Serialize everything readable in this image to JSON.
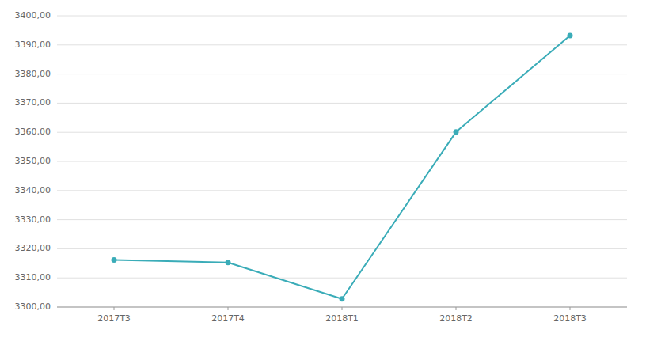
{
  "chart_data": {
    "type": "line",
    "categories": [
      "2017T3",
      "2017T4",
      "2018T1",
      "2018T2",
      "2018T3"
    ],
    "values": [
      3316.2,
      3315.3,
      3302.8,
      3360.1,
      3393.2
    ],
    "color": "#3aacb8",
    "marker": "circle",
    "ylim": [
      3300.0,
      3400.0
    ],
    "yticks": [
      {
        "value": 3300,
        "label": "3300,00"
      },
      {
        "value": 3310,
        "label": "3310,00"
      },
      {
        "value": 3320,
        "label": "3320,00"
      },
      {
        "value": 3330,
        "label": "3330,00"
      },
      {
        "value": 3340,
        "label": "3340,00"
      },
      {
        "value": 3350,
        "label": "3350,00"
      },
      {
        "value": 3360,
        "label": "3360,00"
      },
      {
        "value": 3370,
        "label": "3370,00"
      },
      {
        "value": 3380,
        "label": "3380,00"
      },
      {
        "value": 3390,
        "label": "3390,00"
      },
      {
        "value": 3400,
        "label": "3400,00"
      }
    ],
    "grid": true
  }
}
